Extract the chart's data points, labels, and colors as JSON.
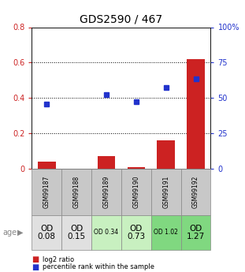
{
  "title": "GDS2590 / 467",
  "samples": [
    "GSM99187",
    "GSM99188",
    "GSM99189",
    "GSM99190",
    "GSM99191",
    "GSM99192"
  ],
  "log2_ratio": [
    0.04,
    0.0,
    0.07,
    0.01,
    0.16,
    0.62
  ],
  "percentile_rank": [
    45.5,
    0.0,
    52.5,
    47.5,
    57.5,
    63.5
  ],
  "bar_color": "#cc2222",
  "dot_color": "#2233cc",
  "ylim_left": [
    0,
    0.8
  ],
  "ylim_right": [
    0,
    100
  ],
  "yticks_left": [
    0,
    0.2,
    0.4,
    0.6,
    0.8
  ],
  "ytick_labels_left": [
    "0",
    "0.2",
    "0.4",
    "0.6",
    "0.8"
  ],
  "yticks_right": [
    0,
    25,
    50,
    75,
    100
  ],
  "ytick_labels_right": [
    "0",
    "25",
    "50",
    "75",
    "100%"
  ],
  "age_labels": [
    "OD\n0.08",
    "OD\n0.15",
    "OD 0.34",
    "OD\n0.73",
    "OD 1.02",
    "OD\n1.27"
  ],
  "age_bg_colors": [
    "#e0e0e0",
    "#e0e0e0",
    "#c8f0c0",
    "#c8f0c0",
    "#80d880",
    "#80d880"
  ],
  "age_fontsize_small": [
    false,
    false,
    true,
    false,
    true,
    false
  ],
  "gsm_bg_color": "#c8c8c8",
  "legend_red": "log2 ratio",
  "legend_blue": "percentile rank within the sample",
  "grid_yticks": [
    0.2,
    0.4,
    0.6
  ],
  "bar_width": 0.6
}
